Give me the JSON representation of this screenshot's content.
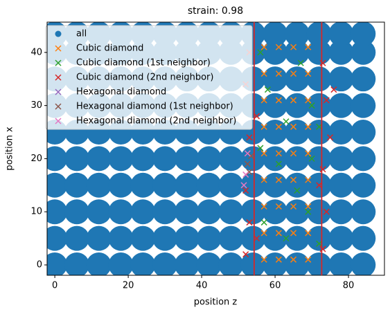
{
  "chart_data": {
    "type": "scatter",
    "title": "strain: 0.98",
    "x_label": "position z",
    "y_label": "position x",
    "xlim": [
      -2.1,
      89.8
    ],
    "ylim": [
      -1.95,
      45.7
    ],
    "xticks": [
      0,
      20,
      40,
      60,
      80
    ],
    "yticks": [
      0,
      10,
      20,
      30,
      40
    ],
    "grid": false,
    "legend": "upper left",
    "vlines": [
      54.3,
      72.7
    ],
    "vline_color": "#d62728",
    "series": [
      {
        "name": "all",
        "color": "#1f77b4",
        "marker": "circle",
        "x": [
          0,
          0,
          0,
          0,
          0,
          0,
          0,
          0,
          0,
          0,
          6,
          6,
          6,
          6,
          6,
          6,
          6,
          6,
          6,
          6,
          12,
          12,
          12,
          12,
          12,
          12,
          12,
          12,
          12,
          12,
          18,
          18,
          18,
          18,
          18,
          18,
          18,
          18,
          18,
          18,
          24,
          24,
          24,
          24,
          24,
          24,
          24,
          24,
          24,
          24,
          30,
          30,
          30,
          30,
          30,
          30,
          30,
          30,
          30,
          30,
          36,
          36,
          36,
          36,
          36,
          36,
          36,
          36,
          36,
          36,
          42,
          42,
          42,
          42,
          42,
          42,
          42,
          42,
          42,
          42,
          48,
          48,
          48,
          48,
          48,
          48,
          48,
          48,
          48,
          48,
          54,
          54,
          54,
          54,
          54,
          54,
          54,
          54,
          54,
          54,
          60,
          60,
          60,
          60,
          60,
          60,
          60,
          60,
          60,
          60,
          66,
          66,
          66,
          66,
          66,
          66,
          66,
          66,
          66,
          66,
          72,
          72,
          72,
          72,
          72,
          72,
          72,
          72,
          72,
          72,
          78,
          78,
          78,
          78,
          78,
          78,
          78,
          78,
          78,
          78,
          84,
          84,
          84,
          84,
          84,
          84,
          84,
          84,
          84,
          84
        ],
        "values": [
          0,
          5,
          10,
          15,
          20,
          25,
          30,
          35,
          40,
          43.5,
          0,
          5,
          10,
          15,
          20,
          25,
          30,
          35,
          40,
          43.5,
          0,
          5,
          10,
          15,
          20,
          25,
          30,
          35,
          40,
          43.5,
          0,
          5,
          10,
          15,
          20,
          25,
          30,
          35,
          40,
          43.5,
          0,
          5,
          10,
          15,
          20,
          25,
          30,
          35,
          40,
          43.5,
          0,
          5,
          10,
          15,
          20,
          25,
          30,
          35,
          40,
          43.5,
          0,
          5,
          10,
          15,
          20,
          25,
          30,
          35,
          40,
          43.5,
          0,
          5,
          10,
          15,
          20,
          25,
          30,
          35,
          40,
          43.5,
          0,
          5,
          10,
          15,
          20,
          25,
          30,
          35,
          40,
          43.5,
          0,
          5,
          10,
          15,
          20,
          25,
          30,
          35,
          40,
          43.5,
          0,
          5,
          10,
          15,
          20,
          25,
          30,
          35,
          40,
          43.5,
          0,
          5,
          10,
          15,
          20,
          25,
          30,
          35,
          40,
          43.5,
          0,
          5,
          10,
          15,
          20,
          25,
          30,
          35,
          40,
          43.5,
          0,
          5,
          10,
          15,
          20,
          25,
          30,
          35,
          40,
          43.5,
          0,
          5,
          10,
          15,
          20,
          25,
          30,
          35,
          40,
          43.5
        ]
      },
      {
        "name": "Cubic diamond",
        "color": "#ff7f0e",
        "marker": "x",
        "x": [
          57,
          57,
          57,
          57,
          57,
          57,
          57,
          57,
          57,
          61,
          61,
          61,
          61,
          61,
          61,
          61,
          61,
          61,
          65,
          65,
          65,
          65,
          65,
          65,
          65,
          65,
          65,
          69,
          69,
          69,
          69,
          69,
          69,
          69,
          69,
          69
        ],
        "values": [
          1,
          6,
          11,
          16,
          21,
          26,
          31,
          36,
          41,
          1,
          6,
          11,
          16,
          21,
          26,
          31,
          36,
          41,
          1,
          6,
          11,
          16,
          21,
          26,
          31,
          36,
          41,
          1,
          6,
          11,
          16,
          21,
          26,
          31,
          36,
          41
        ]
      },
      {
        "name": "Cubic diamond (1st neighbor)",
        "color": "#2ca02c",
        "marker": "x",
        "x": [
          56,
          58,
          63,
          67,
          70,
          56,
          61,
          66,
          70,
          57,
          63,
          69,
          72,
          72
        ],
        "values": [
          40,
          33,
          27,
          38,
          30,
          22,
          19,
          14,
          20,
          8,
          5,
          10,
          26,
          4
        ]
      },
      {
        "name": "Cubic diamond (2nd neighbor)",
        "color": "#d62728",
        "marker": "x",
        "x": [
          52,
          53,
          52,
          53,
          52,
          53,
          55,
          55,
          73,
          74,
          73,
          75,
          74,
          73,
          76,
          72
        ],
        "values": [
          2,
          8,
          14,
          24,
          34,
          40,
          5,
          28,
          3,
          10,
          18,
          24,
          31,
          38,
          33,
          15
        ]
      },
      {
        "name": "Hexagonal diamond",
        "color": "#9467bd",
        "marker": "x",
        "x": [],
        "values": []
      },
      {
        "name": "Hexagonal diamond (1st neighbor)",
        "color": "#8c564b",
        "marker": "x",
        "x": [
          52.5,
          53,
          53.5
        ],
        "values": [
          19,
          17.5,
          20.5
        ]
      },
      {
        "name": "Hexagonal diamond (2nd neighbor)",
        "color": "#e377c2",
        "marker": "x",
        "x": [
          51.5,
          52,
          52.5
        ],
        "values": [
          15,
          17,
          21
        ]
      }
    ]
  }
}
